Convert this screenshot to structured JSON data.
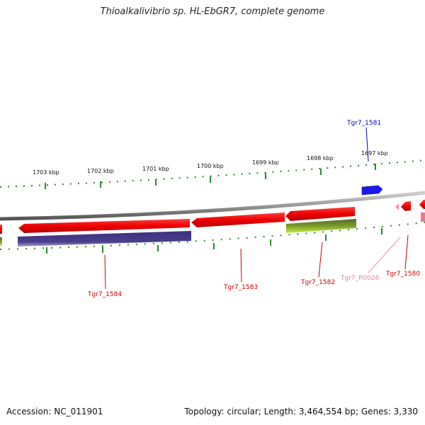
{
  "title": "Thioalkalivibrio sp. HL-EbGR7, complete genome",
  "accession": "Accession: NC_011901",
  "summary": "Topology: circular; Length: 3,464,554 bp; Genes: 3,330",
  "ticks": [
    "1703 kbp",
    "1702 kbp",
    "1701 kbp",
    "1700 kbp",
    "1699 kbp",
    "1698 kbp",
    "1697 kbp"
  ],
  "genes": [
    {
      "id": "Tgr7_1581",
      "color": "#0000cc"
    },
    {
      "id": "Tgr7_1584",
      "color": "#cc0000"
    },
    {
      "id": "Tgr7_1583",
      "color": "#cc0000"
    },
    {
      "id": "Tgr7_1582",
      "color": "#cc0000"
    },
    {
      "id": "Tgr7_R0026",
      "color": "#e87fa0"
    },
    {
      "id": "Tgr7_1580",
      "color": "#cc0000"
    }
  ],
  "colors": {
    "cds": "#ee0000",
    "cds_dark": "#a00000",
    "cog": "#4a3f8a",
    "cog_green": "#6b8e23",
    "cog_lime": "#b5e61d",
    "rna": "#f08fb0",
    "backbone": "#888888",
    "tick": "#2a8a2a",
    "blue_gene": "#1a1aee"
  }
}
